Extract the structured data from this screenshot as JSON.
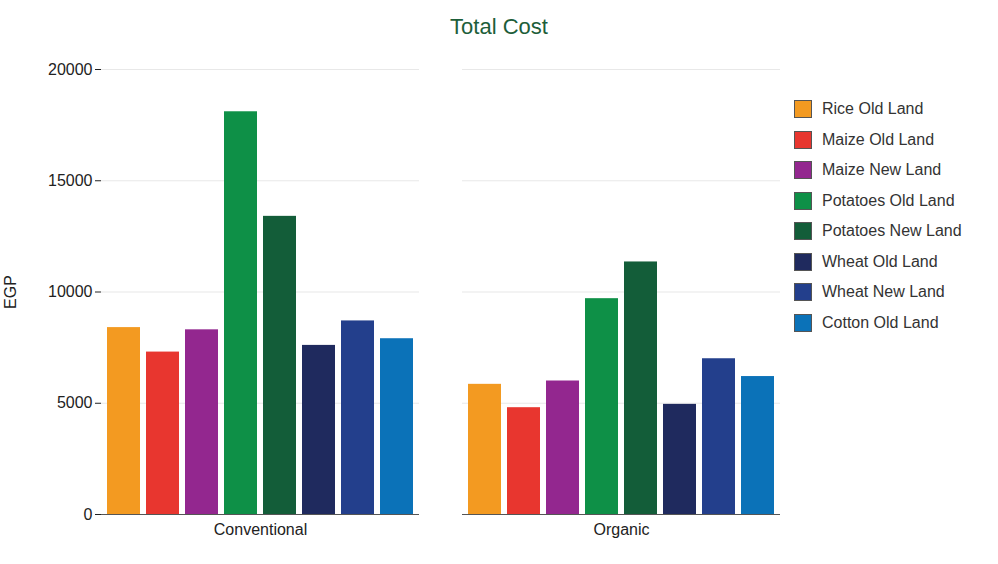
{
  "chart_data": {
    "type": "bar",
    "title": "Total Cost",
    "y_label": "EGP",
    "categories": [
      "Conventional",
      "Organic"
    ],
    "series": [
      {
        "name": "Rice Old Land",
        "color": "#f39a21",
        "values": [
          8400,
          5850
        ]
      },
      {
        "name": "Maize Old Land",
        "color": "#e8362f",
        "values": [
          7300,
          4800
        ]
      },
      {
        "name": "Maize New Land",
        "color": "#93278f",
        "values": [
          8300,
          6000
        ]
      },
      {
        "name": "Potatoes Old Land",
        "color": "#0e9047",
        "values": [
          18100,
          9700
        ]
      },
      {
        "name": "Potatoes New Land",
        "color": "#135d39",
        "values": [
          13400,
          11350
        ]
      },
      {
        "name": "Wheat Old Land",
        "color": "#1f2a5e",
        "values": [
          7600,
          4950
        ]
      },
      {
        "name": "Wheat New Land",
        "color": "#233f8c",
        "values": [
          8700,
          7000
        ]
      },
      {
        "name": "Cotton Old Land",
        "color": "#0b72b8",
        "values": [
          7900,
          6200
        ]
      }
    ],
    "ylim": [
      0,
      20000
    ],
    "yticks": [
      0,
      5000,
      10000,
      15000,
      20000
    ],
    "grid": true,
    "legend": "right"
  }
}
